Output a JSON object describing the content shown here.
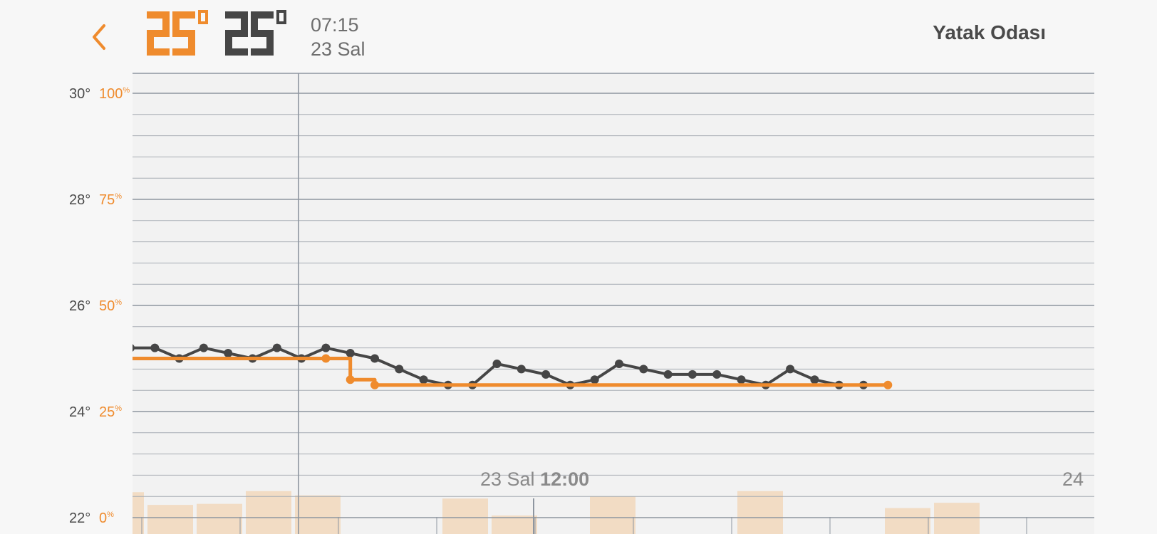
{
  "header": {
    "current_temperature": "25",
    "target_temperature": "25",
    "degree_symbol": "°",
    "time": "07:15",
    "date": "23 Sal",
    "room_name": "Yatak Odası",
    "accent_color": "#ef8b2d",
    "dark_color": "#464646"
  },
  "chart_data": {
    "type": "line",
    "y_axis_left": {
      "label": "",
      "unit": "°",
      "range": [
        22,
        30
      ],
      "ticks": [
        "30°",
        "28°",
        "26°",
        "24°",
        "22°"
      ]
    },
    "y_axis_right": {
      "label": "",
      "unit": "%",
      "range": [
        0,
        100
      ],
      "ticks": [
        "100%",
        "75%",
        "50%",
        "25%",
        "0%"
      ]
    },
    "grid": true,
    "x_labels": [
      {
        "day": "23 Sal",
        "time": "12:00"
      },
      {
        "day": "24",
        "time": ""
      }
    ],
    "series": [
      {
        "kind": "line",
        "color": "#464646",
        "values": [
          25.2,
          25.2,
          25.0,
          25.2,
          25.1,
          25.0,
          25.2,
          25.0,
          25.2,
          25.1,
          25.0,
          24.8,
          24.6,
          24.5,
          24.5,
          24.9,
          24.8,
          24.7,
          24.5,
          24.6,
          24.9,
          24.8,
          24.7,
          24.7,
          24.7,
          24.6,
          24.5,
          24.8,
          24.6,
          24.5,
          24.5
        ]
      },
      {
        "kind": "step",
        "color": "#ef8b2d",
        "values": [
          25.0,
          25.0,
          25.0,
          25.0,
          25.0,
          25.0,
          25.0,
          25.0,
          25.0,
          24.6,
          24.5,
          24.5,
          24.5,
          24.5,
          24.5,
          24.5,
          24.5,
          24.5,
          24.5,
          24.5,
          24.5,
          24.5,
          24.5,
          24.5,
          24.5,
          24.5,
          24.5,
          24.5,
          24.5,
          24.5,
          24.5,
          24.5
        ]
      },
      {
        "kind": "bar",
        "color": "#f2dcc4",
        "axis": "humidity",
        "values": [
          24,
          12,
          13,
          25,
          21,
          0,
          0,
          18,
          2,
          0,
          20,
          0,
          0,
          25,
          0,
          0,
          9,
          14,
          0,
          0
        ]
      }
    ]
  }
}
